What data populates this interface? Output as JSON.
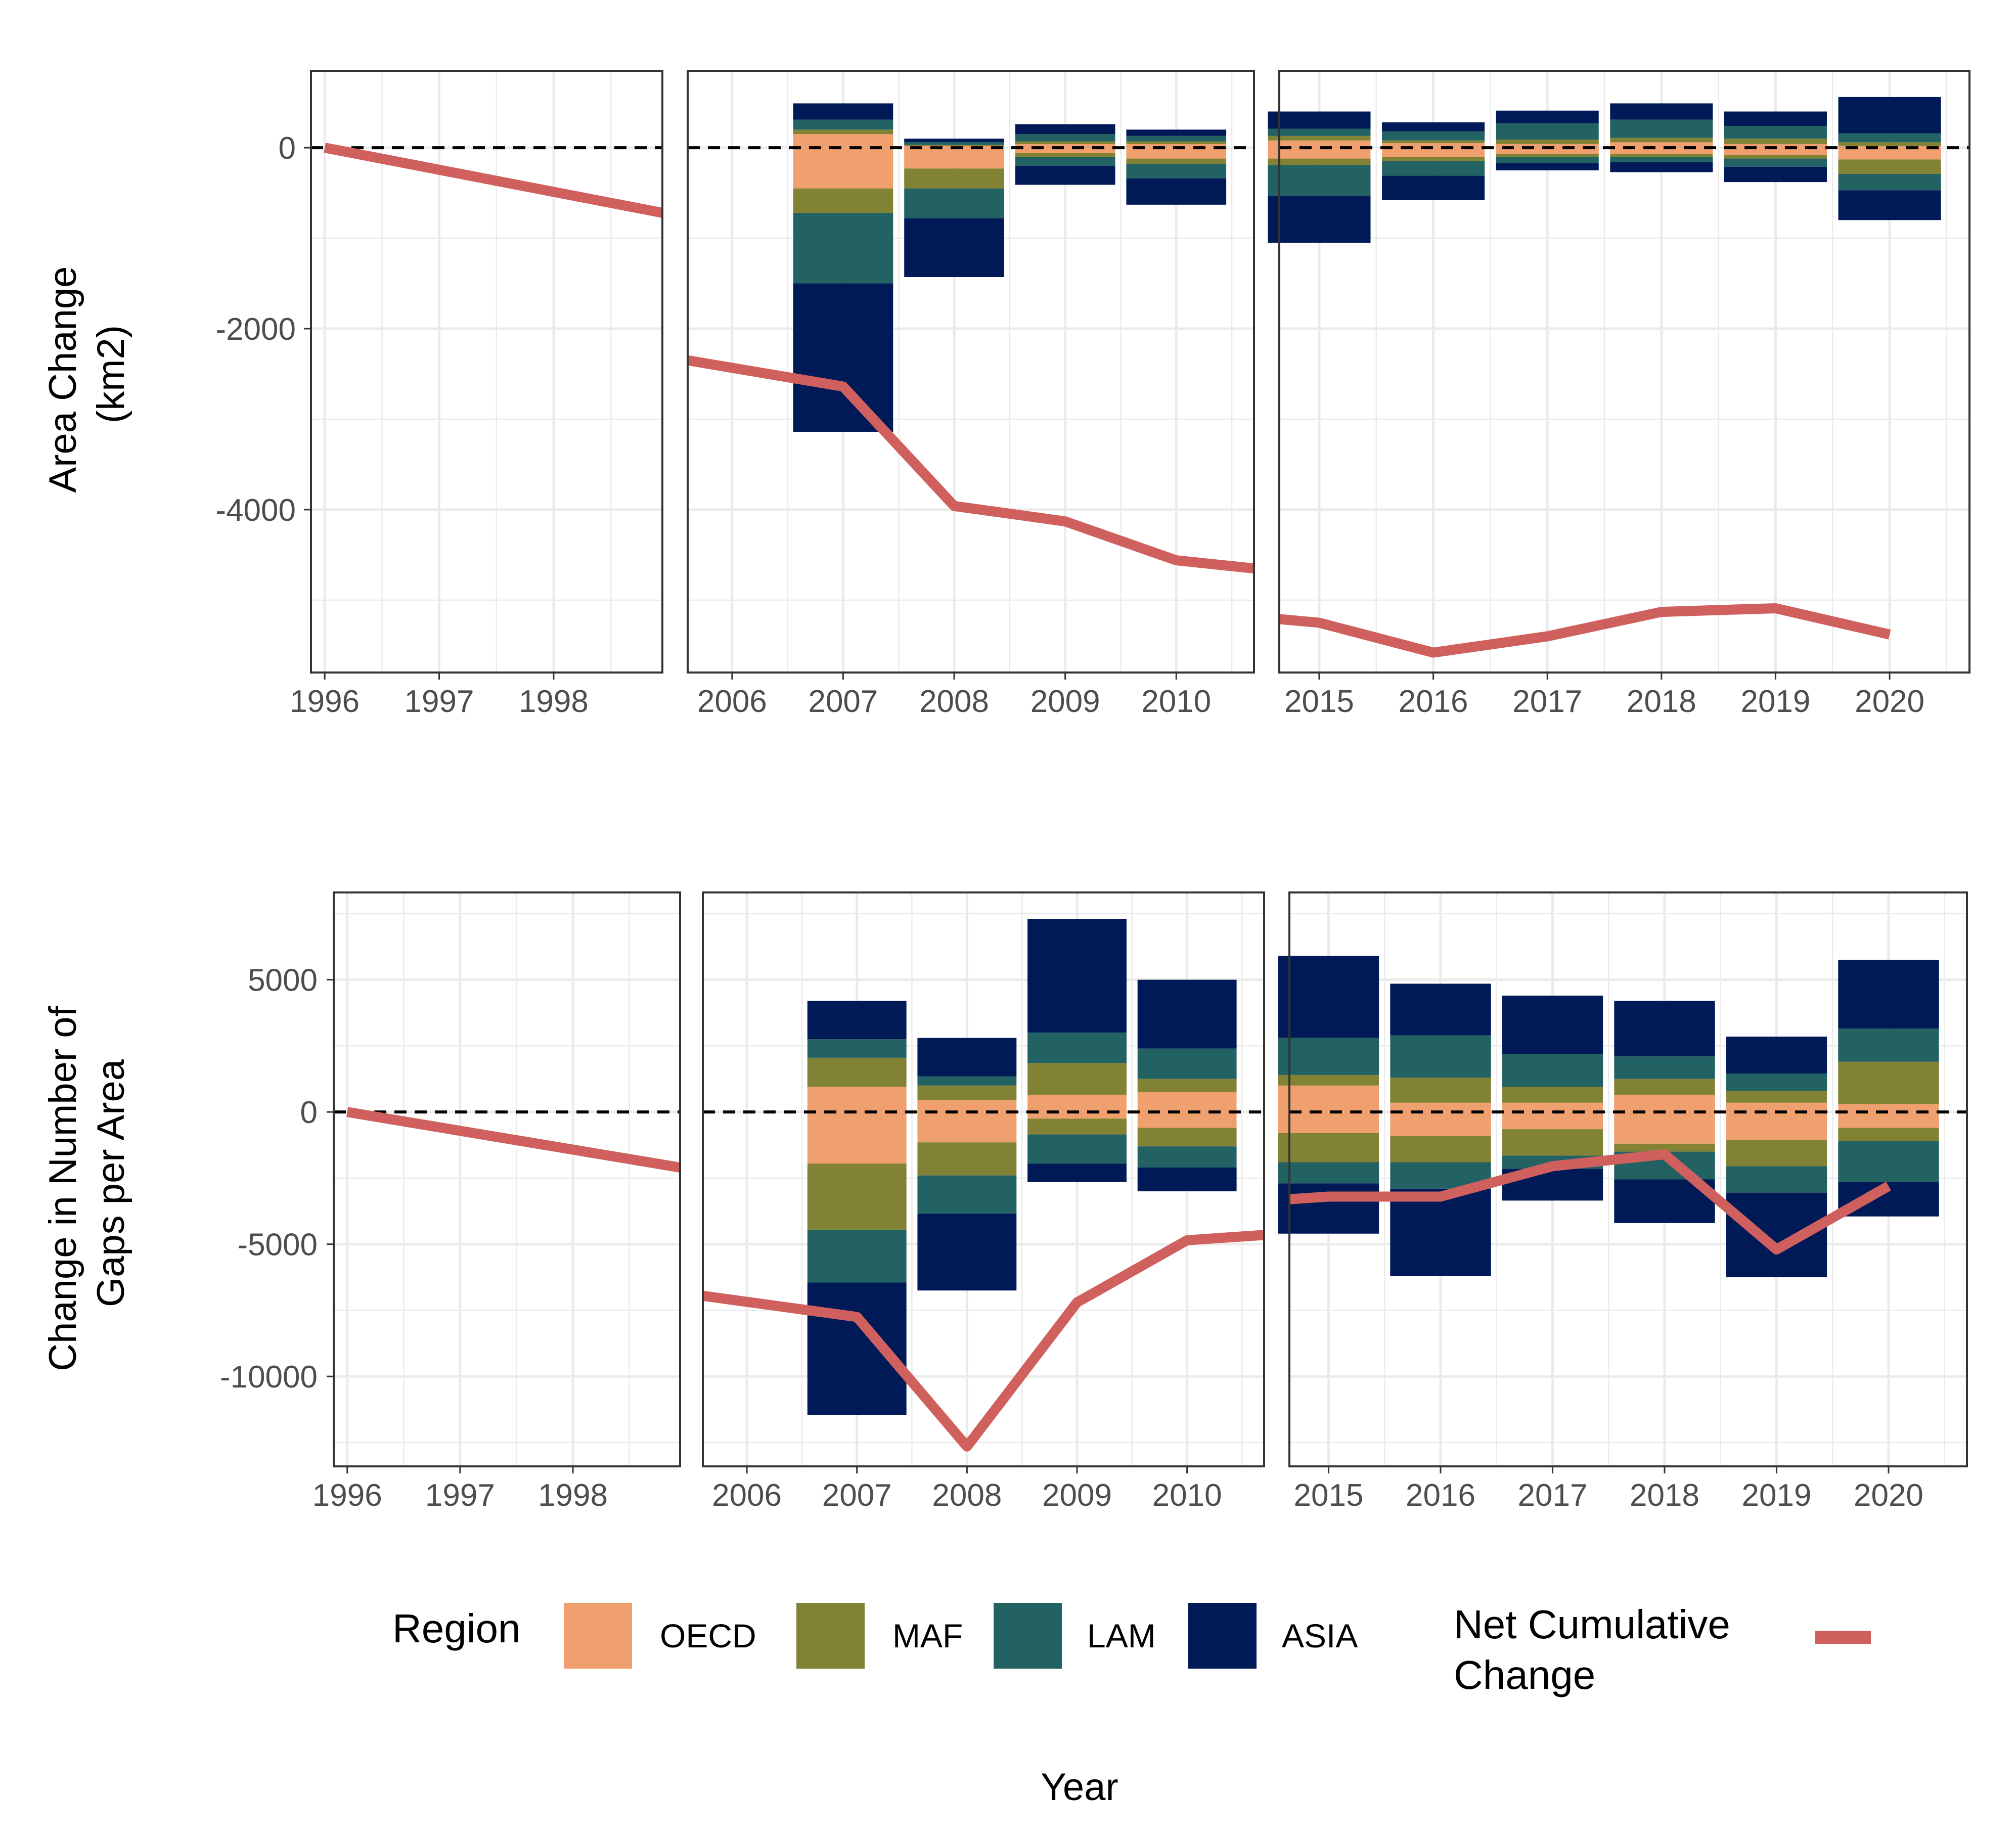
{
  "colors": {
    "OECD": "#F0A06E",
    "MAF": "#828234",
    "LAM": "#226262",
    "ASIA": "#001A57",
    "net": "#D0605E"
  },
  "legend": {
    "region_title": "Region",
    "regions": [
      "OECD",
      "MAF",
      "LAM",
      "ASIA"
    ],
    "net_label_line1": "Net Cumulative",
    "net_label_line2": "Change"
  },
  "x_axis_title": "Year",
  "chart_data": [
    {
      "type": "bar",
      "stacked": true,
      "overlay_line": "Net Cumulative Change",
      "ylabel_line1": "Area Change",
      "ylabel_line2": "(km2)",
      "ylim": [
        -5800,
        850
      ],
      "y_ticks": [
        0,
        -2000,
        -4000
      ],
      "y_tick_labels": [
        "0",
        "-2000",
        "-4000"
      ],
      "reference_line": 0,
      "facets": [
        {
          "xlim": [
            1995.88,
            1998.95
          ],
          "x_ticks": [
            1996,
            1997,
            1998
          ],
          "x_tick_labels": [
            "1996",
            "1997",
            "1998"
          ],
          "bars": [],
          "net_line": [
            [
              1996,
              0
            ],
            [
              1999,
              -720
            ]
          ]
        },
        {
          "xlim": [
            2005.6,
            2010.7
          ],
          "x_ticks": [
            2006,
            2007,
            2008,
            2009,
            2010
          ],
          "x_tick_labels": [
            "2006",
            "2007",
            "2008",
            "2009",
            "2010"
          ],
          "bars": [
            {
              "x": 2007,
              "OECD": [
                150,
                -450
              ],
              "MAF": [
                50,
                -270
              ],
              "LAM": [
                110,
                -780
              ],
              "ASIA": [
                180,
                -1640
              ]
            },
            {
              "x": 2008,
              "OECD": [
                20,
                -230
              ],
              "MAF": [
                10,
                -220
              ],
              "LAM": [
                30,
                -330
              ],
              "ASIA": [
                40,
                -650
              ]
            },
            {
              "x": 2009,
              "OECD": [
                40,
                -60
              ],
              "MAF": [
                30,
                -40
              ],
              "LAM": [
                80,
                -100
              ],
              "ASIA": [
                110,
                -210
              ]
            },
            {
              "x": 2010,
              "OECD": [
                40,
                -120
              ],
              "MAF": [
                30,
                -60
              ],
              "LAM": [
                60,
                -160
              ],
              "ASIA": [
                70,
                -290
              ]
            }
          ],
          "net_line": [
            [
              2005.6,
              -2350
            ],
            [
              2007,
              -2640
            ],
            [
              2008,
              -3960
            ],
            [
              2009,
              -4130
            ],
            [
              2010,
              -4560
            ],
            [
              2010.7,
              -4650
            ]
          ]
        },
        {
          "xlim": [
            2014.65,
            2020.7
          ],
          "x_ticks": [
            2015,
            2016,
            2017,
            2018,
            2019,
            2020
          ],
          "x_tick_labels": [
            "2015",
            "2016",
            "2017",
            "2018",
            "2019",
            "2020"
          ],
          "bars": [
            {
              "x": 2015,
              "OECD": [
                80,
                -120
              ],
              "MAF": [
                50,
                -70
              ],
              "LAM": [
                80,
                -340
              ],
              "ASIA": [
                190,
                -520
              ]
            },
            {
              "x": 2016,
              "OECD": [
                50,
                -100
              ],
              "MAF": [
                30,
                -50
              ],
              "LAM": [
                100,
                -160
              ],
              "ASIA": [
                100,
                -270
              ]
            },
            {
              "x": 2017,
              "OECD": [
                40,
                -70
              ],
              "MAF": [
                50,
                -30
              ],
              "LAM": [
                180,
                -70
              ],
              "ASIA": [
                140,
                -80
              ]
            },
            {
              "x": 2018,
              "OECD": [
                60,
                -70
              ],
              "MAF": [
                50,
                -30
              ],
              "LAM": [
                200,
                -60
              ],
              "ASIA": [
                180,
                -110
              ]
            },
            {
              "x": 2019,
              "OECD": [
                40,
                -80
              ],
              "MAF": [
                60,
                -40
              ],
              "LAM": [
                140,
                -90
              ],
              "ASIA": [
                160,
                -170
              ]
            },
            {
              "x": 2020,
              "OECD": [
                20,
                -130
              ],
              "MAF": [
                40,
                -160
              ],
              "LAM": [
                100,
                -180
              ],
              "ASIA": [
                400,
                -330
              ]
            }
          ],
          "net_line": [
            [
              2014.65,
              -5210
            ],
            [
              2015,
              -5250
            ],
            [
              2016,
              -5580
            ],
            [
              2017,
              -5400
            ],
            [
              2018,
              -5130
            ],
            [
              2019,
              -5090
            ],
            [
              2020,
              -5380
            ]
          ]
        }
      ]
    },
    {
      "type": "bar",
      "stacked": true,
      "overlay_line": "Net Cumulative Change",
      "ylabel_line1": "Change in Number of",
      "ylabel_line2": "Gaps per Area",
      "ylim": [
        -13400,
        8300
      ],
      "y_ticks": [
        5000,
        0,
        -5000,
        -10000
      ],
      "y_tick_labels": [
        "5000",
        "0",
        "-5000",
        "-10000"
      ],
      "reference_line": 0,
      "facets": [
        {
          "xlim": [
            1995.88,
            1998.95
          ],
          "x_ticks": [
            1996,
            1997,
            1998
          ],
          "x_tick_labels": [
            "1996",
            "1997",
            "1998"
          ],
          "bars": [],
          "net_line": [
            [
              1996,
              0
            ],
            [
              1999,
              -2100
            ]
          ]
        },
        {
          "xlim": [
            2005.6,
            2010.7
          ],
          "x_ticks": [
            2006,
            2007,
            2008,
            2009,
            2010
          ],
          "x_tick_labels": [
            "2006",
            "2007",
            "2008",
            "2009",
            "2010"
          ],
          "bars": [
            {
              "x": 2007,
              "OECD": [
                950,
                -1950
              ],
              "MAF": [
                1100,
                -2500
              ],
              "LAM": [
                700,
                -2000
              ],
              "ASIA": [
                1450,
                -5000
              ]
            },
            {
              "x": 2008,
              "OECD": [
                450,
                -1150
              ],
              "MAF": [
                550,
                -1250
              ],
              "LAM": [
                350,
                -1450
              ],
              "ASIA": [
                1450,
                -2900
              ]
            },
            {
              "x": 2009,
              "OECD": [
                650,
                -250
              ],
              "MAF": [
                1200,
                -600
              ],
              "LAM": [
                1150,
                -1100
              ],
              "ASIA": [
                4300,
                -700
              ]
            },
            {
              "x": 2010,
              "OECD": [
                750,
                -600
              ],
              "MAF": [
                500,
                -700
              ],
              "LAM": [
                1150,
                -800
              ],
              "ASIA": [
                2600,
                -900
              ]
            }
          ],
          "net_line": [
            [
              2005.6,
              -6950
            ],
            [
              2007,
              -7750
            ],
            [
              2008,
              -12650
            ],
            [
              2009,
              -7200
            ],
            [
              2010,
              -4850
            ],
            [
              2010.7,
              -4650
            ]
          ]
        },
        {
          "xlim": [
            2014.65,
            2020.7
          ],
          "x_ticks": [
            2015,
            2016,
            2017,
            2018,
            2019,
            2020
          ],
          "x_tick_labels": [
            "2015",
            "2016",
            "2017",
            "2018",
            "2019",
            "2020"
          ],
          "bars": [
            {
              "x": 2015,
              "OECD": [
                1000,
                -800
              ],
              "MAF": [
                400,
                -1100
              ],
              "LAM": [
                1400,
                -800
              ],
              "ASIA": [
                3100,
                -1900
              ]
            },
            {
              "x": 2016,
              "OECD": [
                350,
                -900
              ],
              "MAF": [
                950,
                -1000
              ],
              "LAM": [
                1600,
                -1000
              ],
              "ASIA": [
                1950,
                -3300
              ]
            },
            {
              "x": 2017,
              "OECD": [
                350,
                -650
              ],
              "MAF": [
                600,
                -1000
              ],
              "LAM": [
                1250,
                -500
              ],
              "ASIA": [
                2200,
                -1200
              ]
            },
            {
              "x": 2018,
              "OECD": [
                650,
                -1200
              ],
              "MAF": [
                600,
                -300
              ],
              "LAM": [
                850,
                -1050
              ],
              "ASIA": [
                2100,
                -1650
              ]
            },
            {
              "x": 2019,
              "OECD": [
                350,
                -1050
              ],
              "MAF": [
                450,
                -1000
              ],
              "LAM": [
                650,
                -1000
              ],
              "ASIA": [
                1400,
                -3200
              ]
            },
            {
              "x": 2020,
              "OECD": [
                300,
                -600
              ],
              "MAF": [
                1600,
                -500
              ],
              "LAM": [
                1250,
                -1550
              ],
              "ASIA": [
                2600,
                -1300
              ]
            }
          ],
          "net_line": [
            [
              2014.65,
              -3300
            ],
            [
              2015,
              -3200
            ],
            [
              2016,
              -3200
            ],
            [
              2017,
              -2050
            ],
            [
              2018,
              -1600
            ],
            [
              2019,
              -5200
            ],
            [
              2020,
              -2800
            ]
          ]
        }
      ]
    }
  ]
}
